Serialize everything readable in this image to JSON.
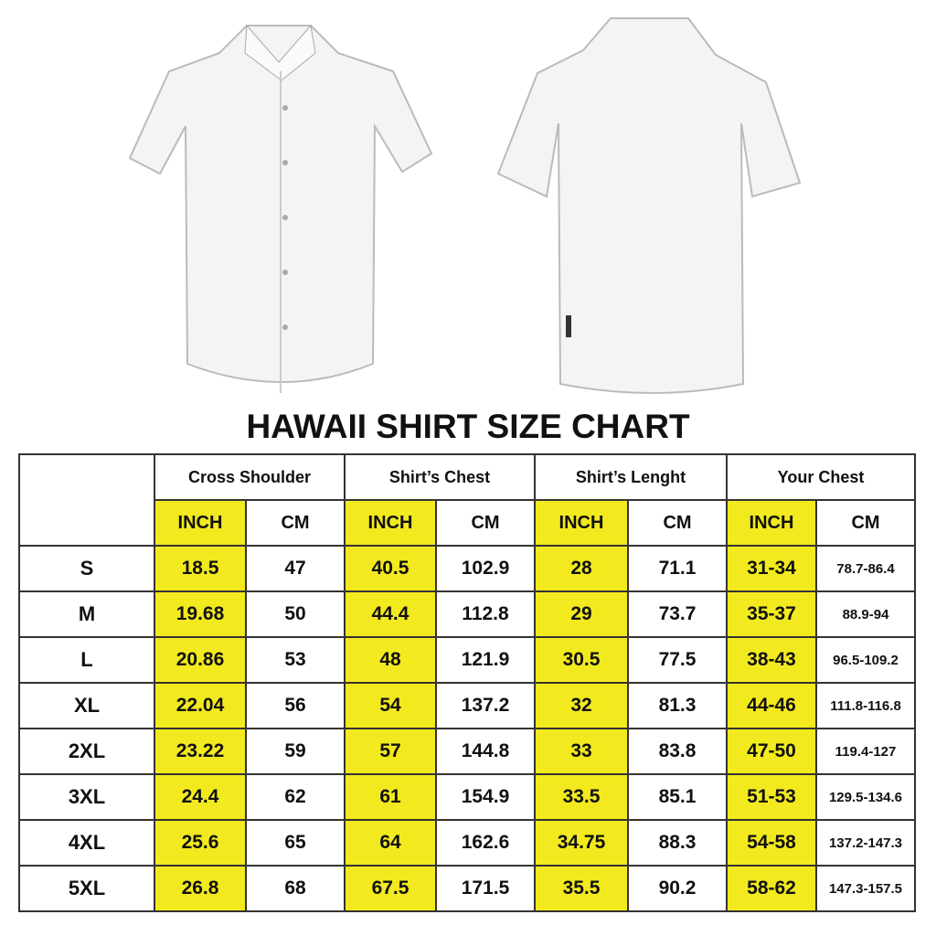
{
  "title": "HAWAII SHIRT SIZE CHART",
  "groups": [
    "Cross Shoulder",
    "Shirt’s Chest",
    "Shirt’s Lenght",
    "Your Chest"
  ],
  "units": [
    "INCH",
    "CM"
  ],
  "colors": {
    "inch_highlight": "#f2ea1e",
    "border": "#333333"
  },
  "images": [
    "shirt-front",
    "shirt-back"
  ],
  "rows": [
    {
      "size": "S",
      "v": [
        "18.5",
        "47",
        "40.5",
        "102.9",
        "28",
        "71.1",
        "31-34",
        "78.7-86.4"
      ]
    },
    {
      "size": "M",
      "v": [
        "19.68",
        "50",
        "44.4",
        "112.8",
        "29",
        "73.7",
        "35-37",
        "88.9-94"
      ]
    },
    {
      "size": "L",
      "v": [
        "20.86",
        "53",
        "48",
        "121.9",
        "30.5",
        "77.5",
        "38-43",
        "96.5-109.2"
      ]
    },
    {
      "size": "XL",
      "v": [
        "22.04",
        "56",
        "54",
        "137.2",
        "32",
        "81.3",
        "44-46",
        "111.8-116.8"
      ]
    },
    {
      "size": "2XL",
      "v": [
        "23.22",
        "59",
        "57",
        "144.8",
        "33",
        "83.8",
        "47-50",
        "119.4-127"
      ]
    },
    {
      "size": "3XL",
      "v": [
        "24.4",
        "62",
        "61",
        "154.9",
        "33.5",
        "85.1",
        "51-53",
        "129.5-134.6"
      ]
    },
    {
      "size": "4XL",
      "v": [
        "25.6",
        "65",
        "64",
        "162.6",
        "34.75",
        "88.3",
        "54-58",
        "137.2-147.3"
      ]
    },
    {
      "size": "5XL",
      "v": [
        "26.8",
        "68",
        "67.5",
        "171.5",
        "35.5",
        "90.2",
        "58-62",
        "147.3-157.5"
      ]
    }
  ]
}
